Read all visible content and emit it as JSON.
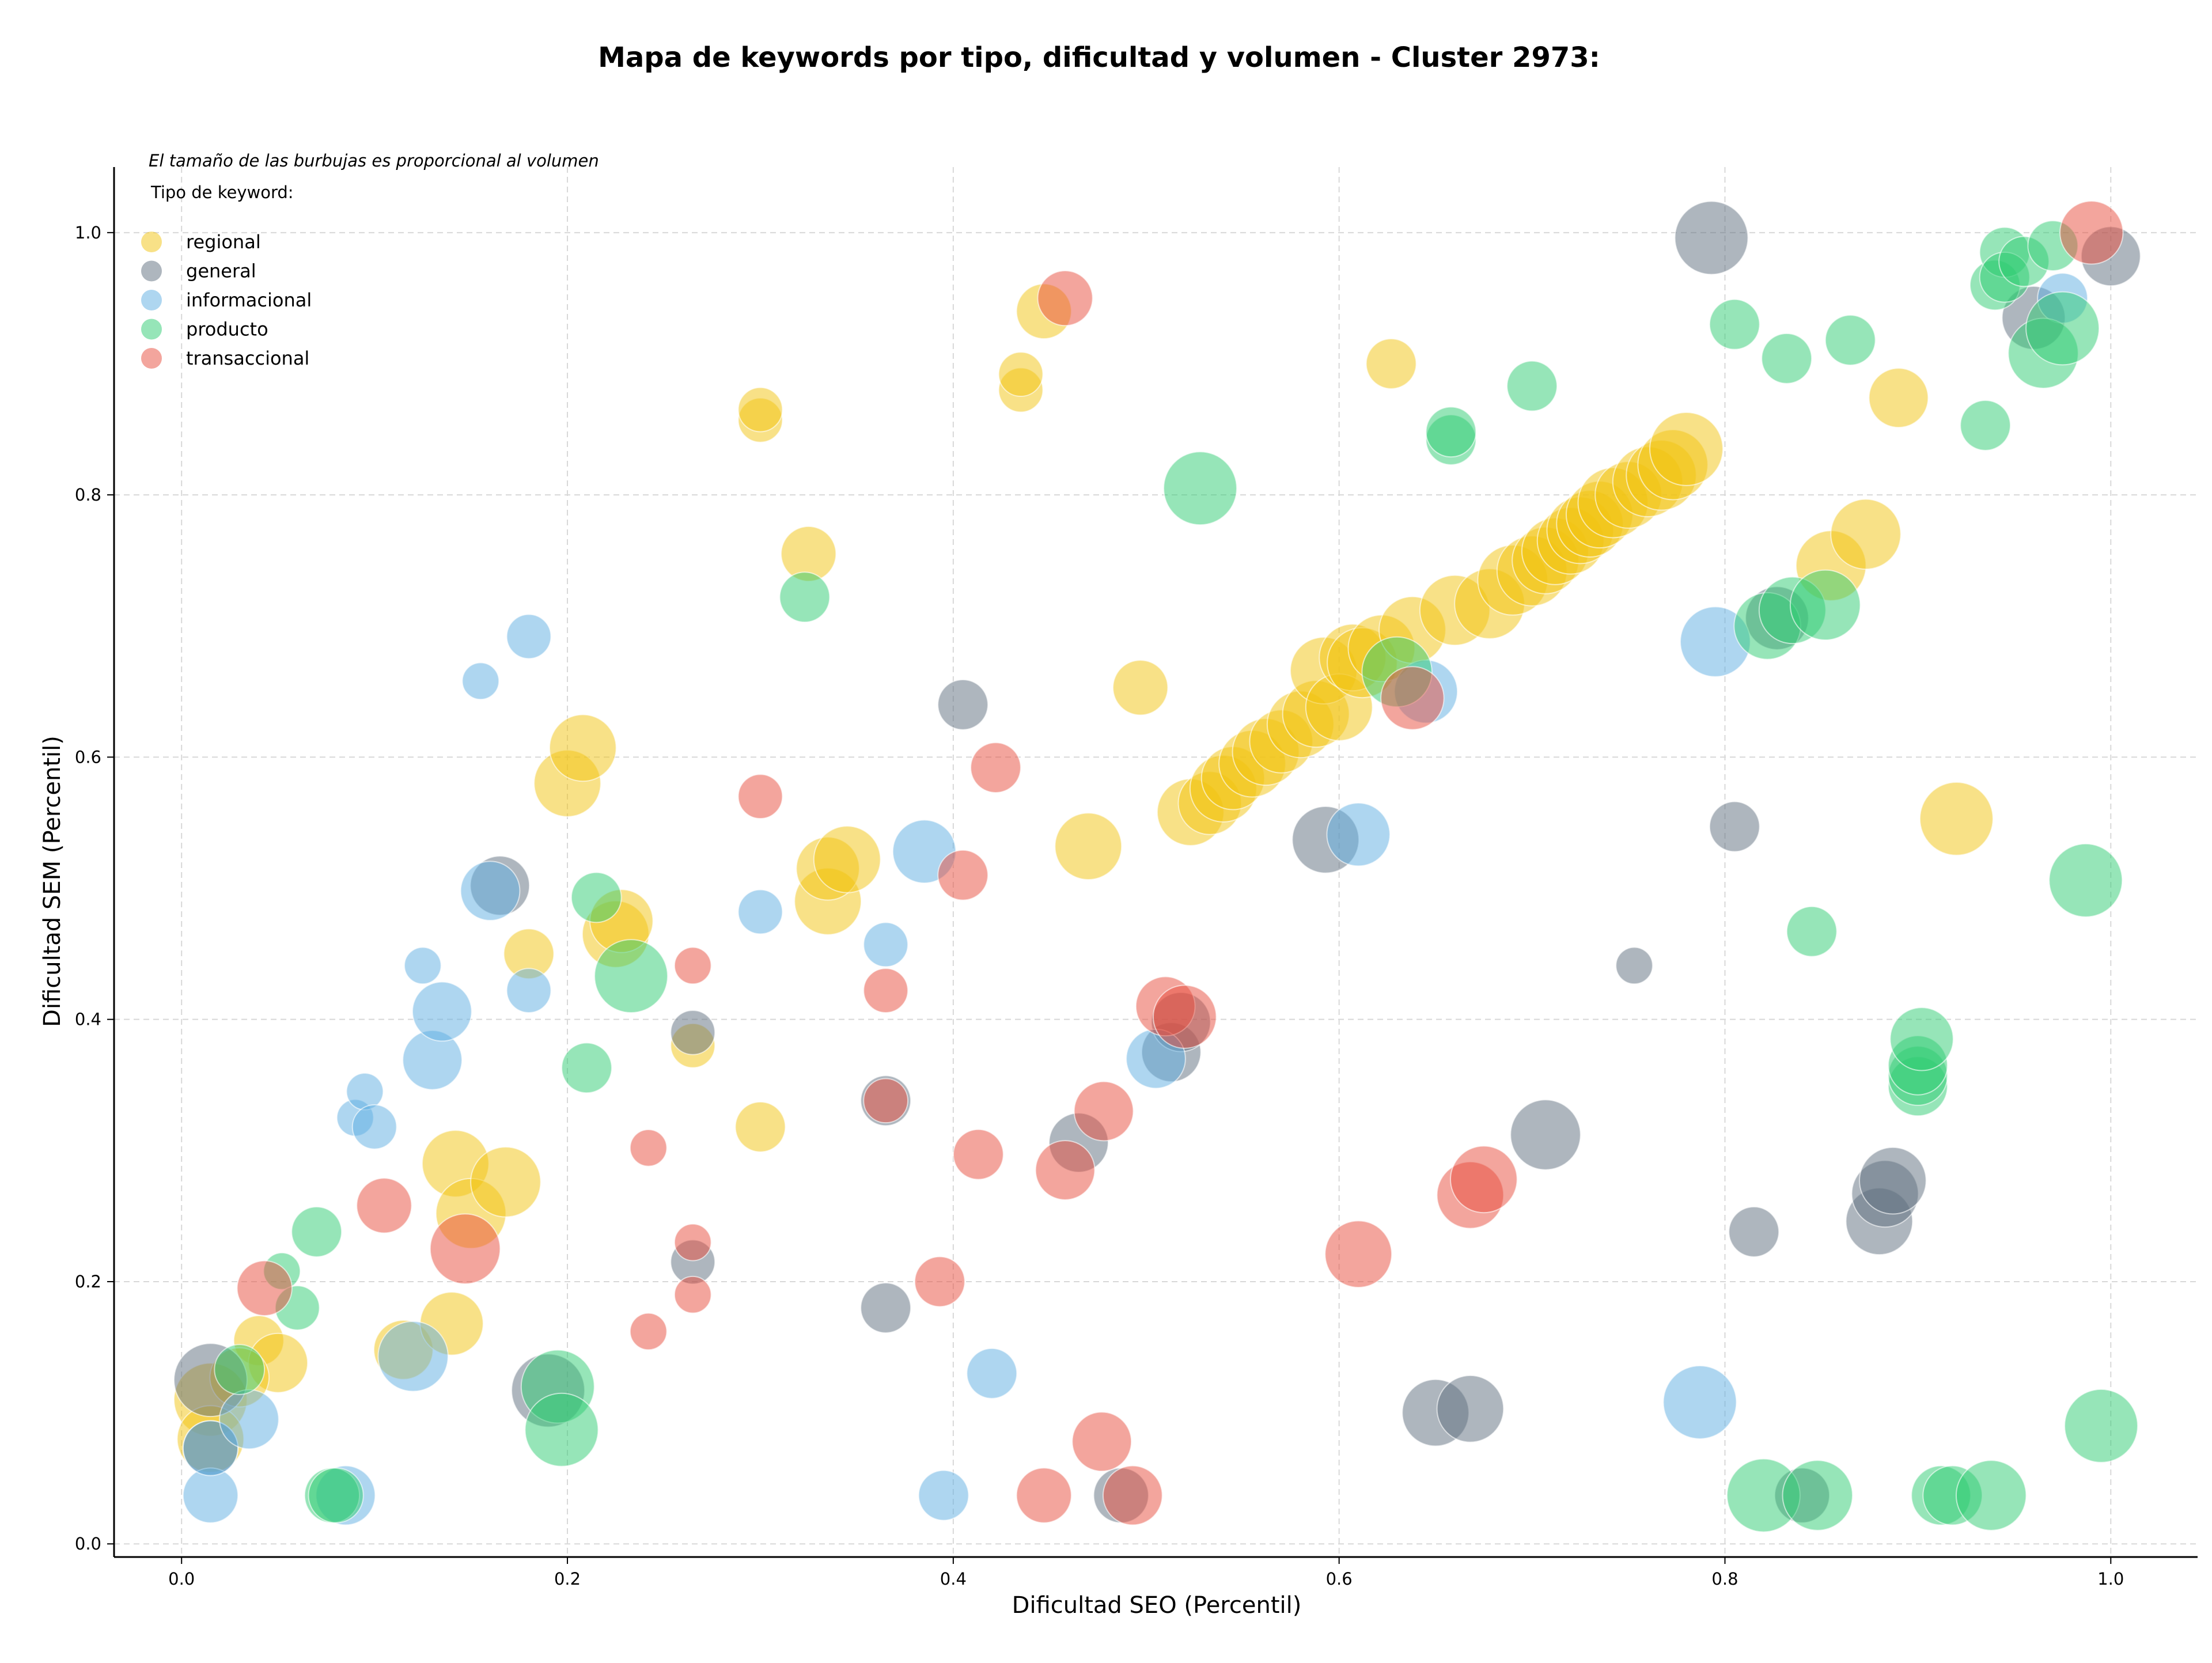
{
  "chart_data": {
    "type": "scatter",
    "title": "Mapa de keywords por tipo, dificultad y volumen - Cluster 2973:",
    "xlabel": "Dificultad SEO (Percentil)",
    "ylabel": "Dificultad SEM (Percentil)",
    "xlim": [
      -0.035,
      1.045
    ],
    "ylim": [
      -0.01,
      1.05
    ],
    "xticks": [
      "0.0",
      "0.2",
      "0.4",
      "0.6",
      "0.8",
      "1.0"
    ],
    "yticks": [
      "0.0",
      "0.2",
      "0.4",
      "0.6",
      "0.8",
      "1.0"
    ],
    "grid": true,
    "legend": {
      "note": "El tamaño de las burbujas es proporcional al volumen",
      "title": "Tipo de keyword:",
      "placement": "top-left"
    },
    "size_encoding": "bubble area proportional to volume (relative size 1-10)",
    "series": [
      {
        "name": "regional",
        "color": "#f1c40f",
        "points": [
          [
            0.015,
            0.11,
            9
          ],
          [
            0.015,
            0.08,
            7
          ],
          [
            0.04,
            0.155,
            3
          ],
          [
            0.05,
            0.138,
            5
          ],
          [
            0.03,
            0.127,
            5
          ],
          [
            0.115,
            0.148,
            5
          ],
          [
            0.14,
            0.168,
            6
          ],
          [
            0.142,
            0.29,
            7
          ],
          [
            0.15,
            0.252,
            8
          ],
          [
            0.168,
            0.276,
            8
          ],
          [
            0.18,
            0.45,
            3
          ],
          [
            0.2,
            0.58,
            7
          ],
          [
            0.208,
            0.607,
            7
          ],
          [
            0.225,
            0.465,
            7
          ],
          [
            0.228,
            0.475,
            6
          ],
          [
            0.265,
            0.38,
            2
          ],
          [
            0.3,
            0.318,
            3
          ],
          [
            0.3,
            0.857,
            2
          ],
          [
            0.3,
            0.865,
            2
          ],
          [
            0.325,
            0.755,
            4
          ],
          [
            0.335,
            0.49,
            7
          ],
          [
            0.335,
            0.515,
            6
          ],
          [
            0.345,
            0.522,
            7
          ],
          [
            0.435,
            0.88,
            2
          ],
          [
            0.435,
            0.892,
            2
          ],
          [
            0.447,
            0.94,
            4
          ],
          [
            0.47,
            0.532,
            7
          ],
          [
            0.497,
            0.653,
            4
          ],
          [
            0.523,
            0.558,
            7
          ],
          [
            0.533,
            0.565,
            6
          ],
          [
            0.54,
            0.576,
            7
          ],
          [
            0.545,
            0.584,
            6
          ],
          [
            0.555,
            0.595,
            7
          ],
          [
            0.562,
            0.604,
            7
          ],
          [
            0.57,
            0.612,
            6
          ],
          [
            0.58,
            0.625,
            7
          ],
          [
            0.588,
            0.633,
            7
          ],
          [
            0.592,
            0.666,
            7
          ],
          [
            0.6,
            0.638,
            7
          ],
          [
            0.607,
            0.676,
            7
          ],
          [
            0.612,
            0.672,
            8
          ],
          [
            0.622,
            0.683,
            7
          ],
          [
            0.627,
            0.9,
            3
          ],
          [
            0.638,
            0.697,
            7
          ],
          [
            0.66,
            0.712,
            8
          ],
          [
            0.678,
            0.717,
            8
          ],
          [
            0.69,
            0.735,
            8
          ],
          [
            0.7,
            0.742,
            8
          ],
          [
            0.707,
            0.75,
            7
          ],
          [
            0.712,
            0.757,
            7
          ],
          [
            0.72,
            0.765,
            7
          ],
          [
            0.725,
            0.773,
            7
          ],
          [
            0.73,
            0.778,
            7
          ],
          [
            0.735,
            0.785,
            7
          ],
          [
            0.742,
            0.794,
            8
          ],
          [
            0.75,
            0.8,
            7
          ],
          [
            0.76,
            0.81,
            8
          ],
          [
            0.767,
            0.815,
            8
          ],
          [
            0.773,
            0.823,
            8
          ],
          [
            0.78,
            0.835,
            9
          ],
          [
            0.855,
            0.746,
            8
          ],
          [
            0.873,
            0.77,
            8
          ],
          [
            0.89,
            0.874,
            5
          ],
          [
            0.92,
            0.553,
            9
          ]
        ]
      },
      {
        "name": "general",
        "color": "#5d6d7e",
        "points": [
          [
            0.015,
            0.125,
            9
          ],
          [
            0.015,
            0.073,
            4
          ],
          [
            0.165,
            0.502,
            5
          ],
          [
            0.19,
            0.117,
            9
          ],
          [
            0.265,
            0.39,
            2
          ],
          [
            0.265,
            0.215,
            2
          ],
          [
            0.365,
            0.18,
            3
          ],
          [
            0.365,
            0.338,
            3
          ],
          [
            0.405,
            0.64,
            3
          ],
          [
            0.465,
            0.306,
            5
          ],
          [
            0.487,
            0.037,
            4
          ],
          [
            0.513,
            0.375,
            5
          ],
          [
            0.518,
            0.398,
            5
          ],
          [
            0.593,
            0.537,
            7
          ],
          [
            0.65,
            0.1,
            7
          ],
          [
            0.668,
            0.103,
            7
          ],
          [
            0.707,
            0.312,
            8
          ],
          [
            0.753,
            0.441,
            1
          ],
          [
            0.793,
            0.996,
            9
          ],
          [
            0.805,
            0.547,
            3
          ],
          [
            0.815,
            0.238,
            3
          ],
          [
            0.827,
            0.706,
            6
          ],
          [
            0.84,
            0.037,
            4
          ],
          [
            0.88,
            0.246,
            7
          ],
          [
            0.883,
            0.267,
            7
          ],
          [
            0.887,
            0.277,
            7
          ],
          [
            0.96,
            0.935,
            6
          ],
          [
            1.0,
            0.982,
            5
          ]
        ]
      },
      {
        "name": "informacional",
        "color": "#5dade2",
        "points": [
          [
            0.015,
            0.037,
            4
          ],
          [
            0.015,
            0.073,
            4
          ],
          [
            0.035,
            0.095,
            5
          ],
          [
            0.085,
            0.037,
            5
          ],
          [
            0.09,
            0.325,
            1
          ],
          [
            0.095,
            0.345,
            1
          ],
          [
            0.1,
            0.318,
            2
          ],
          [
            0.12,
            0.143,
            8
          ],
          [
            0.125,
            0.441,
            1
          ],
          [
            0.13,
            0.369,
            5
          ],
          [
            0.135,
            0.406,
            5
          ],
          [
            0.155,
            0.658,
            1
          ],
          [
            0.16,
            0.498,
            5
          ],
          [
            0.18,
            0.422,
            2
          ],
          [
            0.18,
            0.692,
            2
          ],
          [
            0.3,
            0.482,
            2
          ],
          [
            0.365,
            0.457,
            2
          ],
          [
            0.385,
            0.528,
            6
          ],
          [
            0.395,
            0.037,
            3
          ],
          [
            0.42,
            0.13,
            3
          ],
          [
            0.505,
            0.37,
            5
          ],
          [
            0.61,
            0.541,
            6
          ],
          [
            0.645,
            0.65,
            6
          ],
          [
            0.787,
            0.108,
            9
          ],
          [
            0.795,
            0.688,
            8
          ],
          [
            0.975,
            0.95,
            3
          ]
        ]
      },
      {
        "name": "producto",
        "color": "#2ecc71",
        "points": [
          [
            0.03,
            0.133,
            3
          ],
          [
            0.052,
            0.208,
            1
          ],
          [
            0.06,
            0.18,
            2
          ],
          [
            0.07,
            0.238,
            3
          ],
          [
            0.078,
            0.037,
            4
          ],
          [
            0.08,
            0.037,
            4
          ],
          [
            0.195,
            0.12,
            9
          ],
          [
            0.197,
            0.087,
            9
          ],
          [
            0.21,
            0.363,
            3
          ],
          [
            0.215,
            0.493,
            3
          ],
          [
            0.233,
            0.433,
            9
          ],
          [
            0.323,
            0.722,
            3
          ],
          [
            0.528,
            0.805,
            9
          ],
          [
            0.63,
            0.665,
            8
          ],
          [
            0.658,
            0.842,
            3
          ],
          [
            0.658,
            0.848,
            3
          ],
          [
            0.7,
            0.883,
            3
          ],
          [
            0.805,
            0.93,
            3
          ],
          [
            0.82,
            0.037,
            9
          ],
          [
            0.822,
            0.7,
            7
          ],
          [
            0.832,
            0.904,
            3
          ],
          [
            0.835,
            0.712,
            7
          ],
          [
            0.845,
            0.467,
            3
          ],
          [
            0.848,
            0.037,
            8
          ],
          [
            0.852,
            0.716,
            8
          ],
          [
            0.865,
            0.918,
            3
          ],
          [
            0.9,
            0.349,
            5
          ],
          [
            0.9,
            0.357,
            5
          ],
          [
            0.9,
            0.365,
            5
          ],
          [
            0.902,
            0.385,
            6
          ],
          [
            0.912,
            0.037,
            5
          ],
          [
            0.918,
            0.037,
            5
          ],
          [
            0.935,
            0.853,
            3
          ],
          [
            0.938,
            0.037,
            8
          ],
          [
            0.94,
            0.96,
            3
          ],
          [
            0.945,
            0.985,
            3
          ],
          [
            0.945,
            0.966,
            3
          ],
          [
            0.955,
            0.978,
            3
          ],
          [
            0.965,
            0.908,
            8
          ],
          [
            0.97,
            0.99,
            3
          ],
          [
            0.975,
            0.927,
            9
          ],
          [
            0.987,
            0.506,
            9
          ],
          [
            0.995,
            0.09,
            9
          ]
        ]
      },
      {
        "name": "transaccional",
        "color": "#e74c3c",
        "points": [
          [
            0.043,
            0.195,
            4
          ],
          [
            0.105,
            0.258,
            4
          ],
          [
            0.147,
            0.225,
            8
          ],
          [
            0.242,
            0.302,
            1
          ],
          [
            0.242,
            0.162,
            1
          ],
          [
            0.265,
            0.441,
            1
          ],
          [
            0.265,
            0.23,
            1
          ],
          [
            0.265,
            0.19,
            1
          ],
          [
            0.3,
            0.57,
            2
          ],
          [
            0.365,
            0.422,
            2
          ],
          [
            0.365,
            0.338,
            2
          ],
          [
            0.393,
            0.2,
            3
          ],
          [
            0.405,
            0.51,
            3
          ],
          [
            0.413,
            0.297,
            3
          ],
          [
            0.422,
            0.592,
            3
          ],
          [
            0.447,
            0.037,
            4
          ],
          [
            0.458,
            0.95,
            4
          ],
          [
            0.458,
            0.285,
            5
          ],
          [
            0.477,
            0.078,
            5
          ],
          [
            0.478,
            0.33,
            5
          ],
          [
            0.493,
            0.037,
            5
          ],
          [
            0.51,
            0.41,
            5
          ],
          [
            0.52,
            0.402,
            6
          ],
          [
            0.61,
            0.221,
            7
          ],
          [
            0.638,
            0.645,
            6
          ],
          [
            0.668,
            0.266,
            7
          ],
          [
            0.675,
            0.278,
            7
          ],
          [
            0.99,
            1.0,
            6
          ]
        ]
      }
    ]
  }
}
